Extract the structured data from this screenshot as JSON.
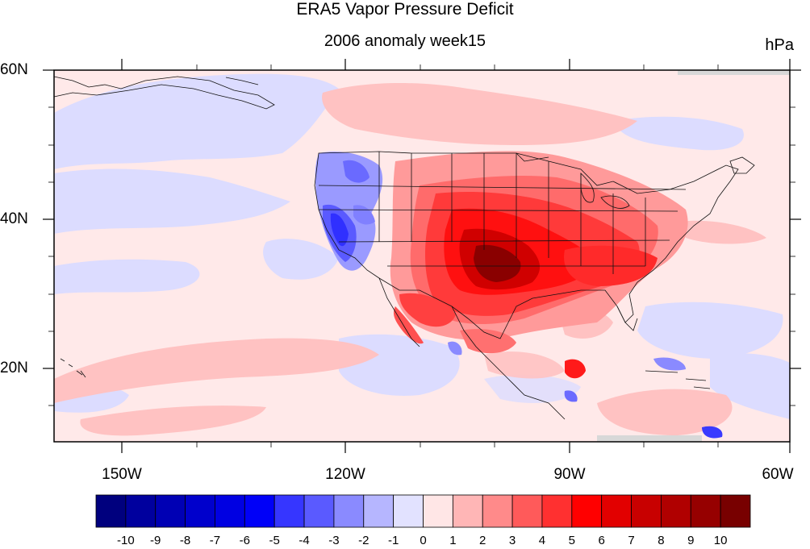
{
  "title": "ERA5 Vapor Pressure Deficit",
  "subtitle": "2006 anomaly week15",
  "units": "hPa",
  "lat_labels": [
    "60N",
    "40N",
    "20N"
  ],
  "lon_labels": [
    "150W",
    "120W",
    "90W",
    "60W"
  ],
  "colorbar": {
    "labels": [
      "-10",
      "-9",
      "-8",
      "-7",
      "-6",
      "-5",
      "-4",
      "-3",
      "-2",
      "-1",
      "0",
      "1",
      "2",
      "3",
      "4",
      "5",
      "6",
      "7",
      "8",
      "9",
      "10"
    ],
    "colors": [
      "#00007e",
      "#00009e",
      "#0000b4",
      "#0000cc",
      "#0000e2",
      "#0000f8",
      "#3636ff",
      "#5a5aff",
      "#8a8aff",
      "#b6b6ff",
      "#e2e2ff",
      "#ffe6e6",
      "#ffb6b6",
      "#ff8a8a",
      "#ff5a5a",
      "#ff3030",
      "#ff0000",
      "#e20000",
      "#c80000",
      "#b00000",
      "#960000",
      "#780000"
    ]
  },
  "map_colors": {
    "ocean_neutral": "#ffe9e9",
    "light_blue": "#dcdcff",
    "mid_blue": "#9a9aff",
    "strong_blue": "#4040ff",
    "light_red": "#ffc2c2",
    "mid_red": "#ff7070",
    "strong_red": "#ff1a1a",
    "dark_red": "#c00000",
    "darkest_red": "#8a0000"
  }
}
